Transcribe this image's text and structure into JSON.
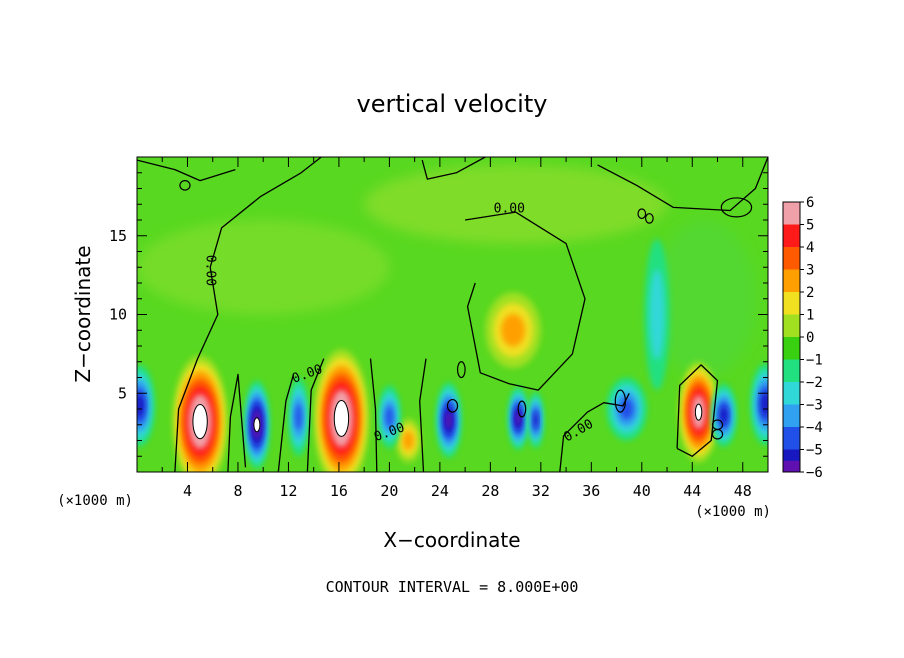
{
  "chart_data": {
    "type": "heatmap",
    "title": "vertical velocity",
    "xlabel": "X−coordinate",
    "ylabel": "Z−coordinate",
    "x_unit_left": "(×1000 m)",
    "x_unit_right": "(×1000 m)",
    "xlim": [
      0,
      50
    ],
    "ylim": [
      0,
      20
    ],
    "x_ticks": [
      4,
      8,
      12,
      16,
      20,
      24,
      28,
      32,
      36,
      40,
      44,
      48
    ],
    "y_ticks": [
      5,
      10,
      15
    ],
    "contour_labels": [
      {
        "text": "0.00",
        "x": 5.8,
        "y": 12.8,
        "rotate": 90
      },
      {
        "text": "0.00",
        "x": 29.5,
        "y": 16.7,
        "rotate": 0
      },
      {
        "text": "0.00",
        "x": 13.5,
        "y": 6.2,
        "rotate": -20
      },
      {
        "text": "0.00",
        "x": 20.0,
        "y": 2.5,
        "rotate": -20
      },
      {
        "text": "0.00",
        "x": 35.0,
        "y": 2.6,
        "rotate": -30
      }
    ],
    "colorbar": {
      "ticks": [
        "6",
        "5",
        "4",
        "3",
        "2",
        "1",
        "0",
        "−1",
        "−2",
        "−3",
        "−4",
        "−5",
        "−6"
      ],
      "colors": [
        "#f0a0a8",
        "#ff1a1a",
        "#ff5a00",
        "#ffa000",
        "#f0e020",
        "#a0e020",
        "#38d010",
        "#20e080",
        "#30d8d8",
        "#30a0f0",
        "#2050e8",
        "#1818c0",
        "#6010b0"
      ]
    },
    "features": [
      {
        "type": "updraft",
        "cx": 5.0,
        "cz": 3.2,
        "rx": 2.2,
        "rz": 4.2,
        "peak": 8
      },
      {
        "type": "updraft",
        "cx": 16.2,
        "cz": 3.4,
        "rx": 2.2,
        "rz": 4.4,
        "peak": 8
      },
      {
        "type": "updraft",
        "cx": 44.5,
        "cz": 3.8,
        "rx": 1.6,
        "rz": 3.2,
        "peak": 7
      },
      {
        "type": "updraft",
        "cx": 29.8,
        "cz": 9.0,
        "rx": 2.2,
        "rz": 2.4,
        "peak": 3
      },
      {
        "type": "updraft",
        "cx": 21.5,
        "cz": 2.0,
        "rx": 1.0,
        "rz": 1.4,
        "peak": 3
      },
      {
        "type": "downdraft",
        "cx": 9.5,
        "cz": 3.0,
        "rx": 1.0,
        "rz": 2.8,
        "peak": -7
      },
      {
        "type": "downdraft",
        "cx": 12.8,
        "cz": 3.5,
        "rx": 0.8,
        "rz": 2.5,
        "peak": -4
      },
      {
        "type": "downdraft",
        "cx": 20.0,
        "cz": 3.5,
        "rx": 0.9,
        "rz": 2.0,
        "peak": -4
      },
      {
        "type": "downdraft",
        "cx": 24.7,
        "cz": 3.3,
        "rx": 1.0,
        "rz": 2.4,
        "peak": -6
      },
      {
        "type": "downdraft",
        "cx": 30.2,
        "cz": 3.4,
        "rx": 0.8,
        "rz": 2.0,
        "peak": -6
      },
      {
        "type": "downdraft",
        "cx": 31.6,
        "cz": 3.3,
        "rx": 0.6,
        "rz": 1.8,
        "peak": -5
      },
      {
        "type": "downdraft",
        "cx": 38.8,
        "cz": 4.0,
        "rx": 1.6,
        "rz": 2.0,
        "peak": -4
      },
      {
        "type": "downdraft",
        "cx": 46.5,
        "cz": 3.6,
        "rx": 1.0,
        "rz": 2.0,
        "peak": -5
      },
      {
        "type": "downdraft",
        "cx": 49.8,
        "cz": 4.3,
        "rx": 1.2,
        "rz": 2.6,
        "peak": -5
      },
      {
        "type": "downdraft",
        "cx": 0.2,
        "cz": 4.2,
        "rx": 1.2,
        "rz": 2.6,
        "peak": -5
      },
      {
        "type": "downdraft",
        "cx": 41.2,
        "cz": 10.0,
        "rx": 1.0,
        "rz": 4.8,
        "peak": -2
      }
    ]
  },
  "footer": {
    "contour_interval": "CONTOUR INTERVAL = 8.000E+00"
  }
}
